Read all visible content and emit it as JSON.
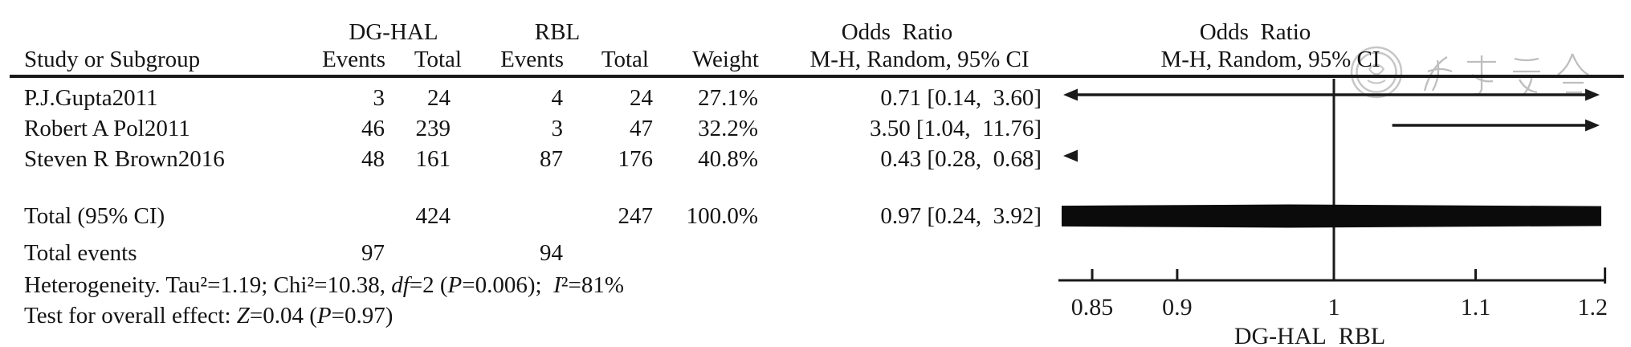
{
  "headers": {
    "dg_hal": "DG-HAL",
    "rbl": "RBL",
    "odds_ratio_left": "Odds  Ratio",
    "odds_ratio_right": "Odds  Ratio",
    "study": "Study or Subgroup",
    "events_dghal": "Events",
    "total_dghal": "Total",
    "events_rbl": "Events",
    "total_rbl": "Total",
    "weight": "Weight",
    "mh_left": "M-H, Random, 95% CI",
    "mh_right": "M-H, Random, 95% CI"
  },
  "chart_data": {
    "type": "forest",
    "scale": "log10",
    "axis": {
      "min": 0.85,
      "max": 1.2,
      "null_line": 1,
      "ticks": [
        0.85,
        0.9,
        1,
        1.1,
        1.2
      ],
      "caption": "DG-HAL  RBL"
    },
    "rows": [
      {
        "study": "P.J.Gupta2011",
        "events1": "3",
        "total1": "24",
        "events2": "4",
        "total2": "24",
        "weight": "27.1%",
        "or": 0.71,
        "ci_low": 0.14,
        "ci_high": 3.6,
        "ci_text": "0.71 [0.14,  3.60]"
      },
      {
        "study": "Robert A Pol2011",
        "events1": "46",
        "total1": "239",
        "events2": "3",
        "total2": "47",
        "weight": "32.2%",
        "or": 3.5,
        "ci_low": 1.04,
        "ci_high": 11.76,
        "ci_text": "3.50 [1.04,  11.76]"
      },
      {
        "study": "Steven R Brown2016",
        "events1": "48",
        "total1": "161",
        "events2": "87",
        "total2": "176",
        "weight": "40.8%",
        "or": 0.43,
        "ci_low": 0.28,
        "ci_high": 0.68,
        "ci_text": "0.43 [0.28,  0.68]"
      }
    ],
    "total": {
      "label": "Total (95% CI)",
      "total1": "424",
      "total2": "247",
      "weight": "100.0%",
      "or": 0.97,
      "ci_low": 0.24,
      "ci_high": 3.92,
      "ci_text": "0.97 [0.24,  3.92]"
    },
    "total_events": {
      "label": "Total events",
      "events1": "97",
      "events2": "94"
    }
  },
  "stats": {
    "heterogeneity": [
      {
        "t": "Heterogeneity. Tau²=1.19; Chi²=10.38, "
      },
      {
        "i": "df"
      },
      {
        "t": "=2 ("
      },
      {
        "i": "P"
      },
      {
        "t": "=0.006);  "
      },
      {
        "i": "I"
      },
      {
        "t": "²=81%"
      }
    ],
    "overall_effect": [
      {
        "t": "Test for overall effect: "
      },
      {
        "i": "Z"
      },
      {
        "t": "=0.04 ("
      },
      {
        "i": "P"
      },
      {
        "t": "=0.97)"
      }
    ]
  },
  "watermark": {
    "description": "faint circular society seal with four calligraphic characters",
    "color": "#b2b2b2"
  },
  "colors": {
    "ink": "#1a1a1a",
    "background": "#ffffff"
  }
}
